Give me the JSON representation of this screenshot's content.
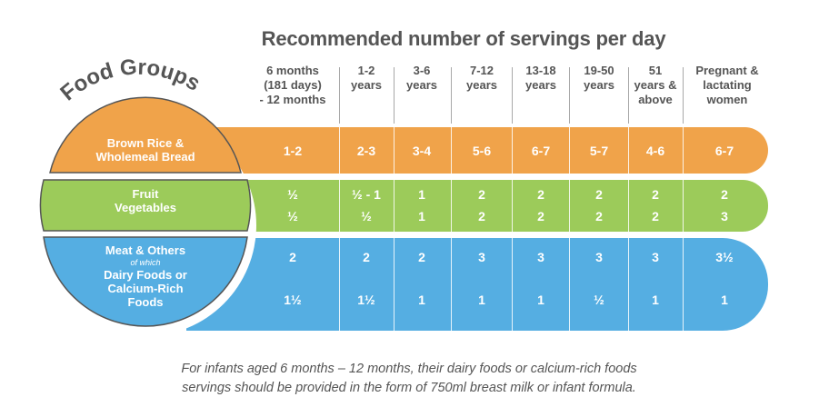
{
  "title": "Recommended number of servings per day",
  "food_groups_heading": "Food Groups",
  "columns": [
    {
      "lines": [
        "6 months",
        "(181 days)",
        "- 12 months"
      ]
    },
    {
      "lines": [
        "1-2",
        "years"
      ]
    },
    {
      "lines": [
        "3-6",
        "years"
      ]
    },
    {
      "lines": [
        "7-12",
        "years"
      ]
    },
    {
      "lines": [
        "13-18",
        "years"
      ]
    },
    {
      "lines": [
        "19-50",
        "years"
      ]
    },
    {
      "lines": [
        "51",
        "years &",
        "above"
      ]
    },
    {
      "lines": [
        "Pregnant &",
        "lactating",
        "women"
      ]
    }
  ],
  "groups": {
    "grains": {
      "label_lines": [
        "Brown Rice &",
        "Wholemeal Bread"
      ],
      "color": "#f0a34a",
      "values": [
        "1-2",
        "2-3",
        "3-4",
        "5-6",
        "6-7",
        "5-7",
        "4-6",
        "6-7"
      ]
    },
    "fruit_veg": {
      "label_lines": [
        "Fruit",
        "Vegetables"
      ],
      "color": "#9ccb5a",
      "fruit_values": [
        "½",
        "½ - 1",
        "1",
        "2",
        "2",
        "2",
        "2",
        "2"
      ],
      "veg_values": [
        "½",
        "½",
        "1",
        "2",
        "2",
        "2",
        "2",
        "3"
      ]
    },
    "meat": {
      "label_lines": [
        "Meat & Others"
      ],
      "of_which": "of which",
      "dairy_lines": [
        "Dairy Foods or",
        "Calcium-Rich",
        "Foods"
      ],
      "color": "#55aee2",
      "meat_values": [
        "2",
        "2",
        "2",
        "3",
        "3",
        "3",
        "3",
        "3½"
      ],
      "dairy_values": [
        "1½",
        "1½",
        "1",
        "1",
        "1",
        "½",
        "1",
        "1"
      ]
    }
  },
  "footnote": [
    "For infants aged 6 months – 12 months, their dairy foods or calcium-rich foods",
    "servings should be provided in the form of 750ml breast milk or infant formula."
  ]
}
